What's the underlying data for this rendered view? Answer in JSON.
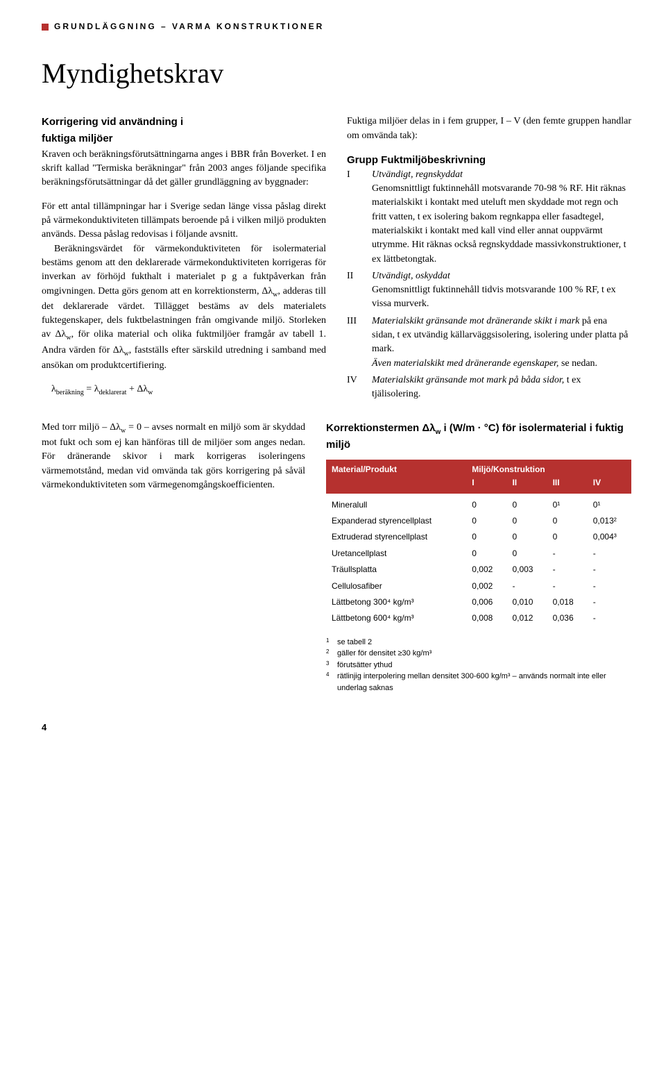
{
  "header": {
    "bullet_color": "#b6312f",
    "text": "GRUNDLÄGGNING – VARMA KONSTRUKTIONER"
  },
  "title": "Myndighetskrav",
  "left_col": {
    "subhead_line1": "Korrigering vid användning i",
    "subhead_line2": "fuktiga miljöer",
    "para1": "Kraven och beräkningsförutsättningarna anges i BBR från Boverket. I en skrift kallad \"Termiska beräkningar\" från 2003 anges följande specifika beräkningsförutsättningar då det gäller grundläggning av byggnader:",
    "para2": "För ett antal tillämpningar har i Sverige sedan länge vissa påslag direkt på värmekonduktiviteten tillämpats beroende på i vilken miljö produkten används. Dessa påslag redovisas i följande avsnitt.",
    "para3": "Beräkningsvärdet för värmekonduktiviteten för isolermaterial bestäms genom att den deklarerade värmekonduktiviteten korrigeras för inverkan av förhöjd fukthalt i materialet p g a fuktpåverkan från omgivningen. Detta görs genom att en korrektionsterm, Δλw, adderas till det deklarerade värdet. Tillägget bestäms av dels materialets fuktegenskaper, dels fuktbelastningen från omgivande miljö. Storleken av Δλw, för olika material och olika fuktmiljöer framgår av tabell 1. Andra värden för Δλw, fastställs efter särskild utredning i samband med ansökan om produktcertifiering.",
    "formula": "λberäkning = λdeklarerat + Δλw"
  },
  "right_col": {
    "intro": "Fuktiga miljöer delas in i fem grupper, I – V (den femte gruppen handlar om omvända tak):",
    "heading": "Grupp Fuktmiljöbeskrivning",
    "groups": [
      {
        "num": "I",
        "title": "Utvändigt, regnskyddat",
        "body": "Genomsnittligt fuktinnehåll motsvarande 70-98 % RF. Hit räknas materialskikt i kontakt med uteluft men skyddade mot regn och fritt vatten, t ex isolering bakom regnkappa eller fasadtegel, materialskikt i kontakt med kall vind eller annat ouppvärmt utrymme. Hit räknas också regnskyddade massivkonstruktioner, t ex lättbetongtak."
      },
      {
        "num": "II",
        "title": "Utvändigt, oskyddat",
        "body": "Genomsnittligt fuktinnehåll tidvis motsvarande 100 % RF, t ex vissa murverk."
      },
      {
        "num": "III",
        "title": "Materialskikt gränsande mot dränerande skikt i mark",
        "body_pre": " på ena sidan, t ex utvändig källarväggsisolering, isolering under platta på mark.",
        "extra_ital": "Även materialskikt med dränerande egenskaper, ",
        "extra_plain": "se nedan."
      },
      {
        "num": "IV",
        "title": "Materialskikt gränsande mot mark på båda sidor,",
        "body": " t ex tjälisolering."
      }
    ]
  },
  "bottom_left_para": "Med torr miljö – Δλw = 0 – avses normalt en miljö som är skyddad mot fukt och som ej kan hänföras till de miljöer som anges nedan. För dränerande skivor i mark korrigeras isoleringens värmemotstånd, medan vid omvända tak görs korrigering på såväl värmekonduktiviteten som värmegenomgångskoefficienten.",
  "table": {
    "title": "Korrektionstermen Δλw i (W/m · °C) för isolermaterial i fuktig miljö",
    "header_bg": "#b6312f",
    "header_fg": "#ffffff",
    "col_material": "Material/Produkt",
    "col_miljo": "Miljö/Konstruktion",
    "cols": [
      "I",
      "II",
      "III",
      "IV"
    ],
    "rows": [
      {
        "name": "Mineralull",
        "v": [
          "0",
          "0",
          "0¹",
          "0¹"
        ]
      },
      {
        "name": "Expanderad styrencellplast",
        "v": [
          "0",
          "0",
          "0",
          "0,013²"
        ]
      },
      {
        "name": "Extruderad styrencellplast",
        "v": [
          "0",
          "0",
          "0",
          "0,004³"
        ]
      },
      {
        "name": "Uretancellplast",
        "v": [
          "0",
          "0",
          "-",
          "-"
        ]
      },
      {
        "name": "Träullsplatta",
        "v": [
          "0,002",
          "0,003",
          "-",
          "-"
        ]
      },
      {
        "name": "Cellulosafiber",
        "v": [
          "0,002",
          "-",
          "-",
          "-"
        ]
      },
      {
        "name": "Lättbetong 300⁴ kg/m³",
        "v": [
          "0,006",
          "0,010",
          "0,018",
          "-"
        ]
      },
      {
        "name": "Lättbetong 600⁴ kg/m³",
        "v": [
          "0,008",
          "0,012",
          "0,036",
          "-"
        ]
      }
    ],
    "footnotes": [
      {
        "n": "1",
        "t": "se tabell 2"
      },
      {
        "n": "2",
        "t": "gäller för densitet ≥30 kg/m³"
      },
      {
        "n": "3",
        "t": "förutsätter ythud"
      },
      {
        "n": "4",
        "t": "rätlinjig interpolering mellan densitet 300-600 kg/m³ – används normalt inte eller underlag saknas"
      }
    ]
  },
  "page_number": "4"
}
